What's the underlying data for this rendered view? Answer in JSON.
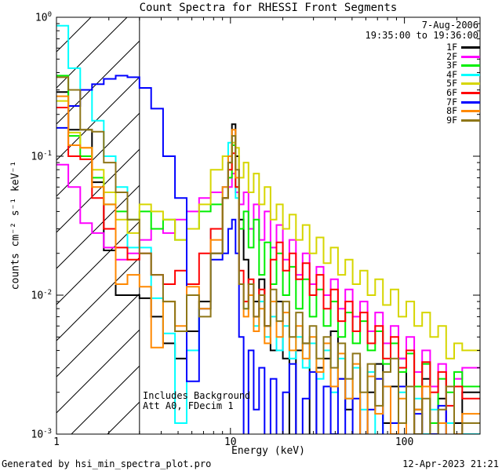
{
  "chart_data": {
    "type": "line",
    "subtype": "log-log step histogram spectra",
    "title": "Count Spectra for RHESSI Front Segments",
    "observation": {
      "date": "7-Aug-2006",
      "time_range": "19:35:00 to 19:36:00"
    },
    "annotations": [
      "Includes Background",
      "Att A0, FDecim 1"
    ],
    "footer": {
      "left": "Generated by hsi_min_spectra_plot.pro",
      "right": "12-Apr-2023 21:21"
    },
    "xlabel": "Energy (keV)",
    "ylabel": "counts cm⁻² s⁻¹ keV⁻¹",
    "xlim": [
      1,
      272
    ],
    "ylim": [
      0.001,
      1
    ],
    "xlog": true,
    "ylog": true,
    "grid": false,
    "legend_position": "top-right-inside",
    "hatched_region_kev": [
      1,
      3
    ],
    "x_tick_labels": [
      {
        "value": 1,
        "label": "1"
      },
      {
        "value": 10,
        "label": "10"
      },
      {
        "value": 100,
        "label": "100"
      }
    ],
    "y_tick_labels": [
      {
        "value": 1,
        "base": "10",
        "exp": "0"
      },
      {
        "value": 0.1,
        "base": "10",
        "exp": "-1"
      },
      {
        "value": 0.01,
        "base": "10",
        "exp": "-2"
      },
      {
        "value": 0.001,
        "base": "10",
        "exp": "-3"
      }
    ],
    "x_bin_edges": [
      1.0,
      1.17,
      1.37,
      1.6,
      1.87,
      2.19,
      2.56,
      3.0,
      3.5,
      4.1,
      4.8,
      5.6,
      6.6,
      7.7,
      9.0,
      9.7,
      10.2,
      10.7,
      11.2,
      11.9,
      12.7,
      13.6,
      14.6,
      15.7,
      17.0,
      18.4,
      20.0,
      21.8,
      23.8,
      26.0,
      28.5,
      31.2,
      34.3,
      37.7,
      41.5,
      45.7,
      50.4,
      55.6,
      61.4,
      67.9,
      75.2,
      83.3,
      92.4,
      102.5,
      113.8,
      126.4,
      140.5,
      156.2,
      173.7,
      193.2,
      215.0,
      272.0
    ],
    "series": [
      {
        "name": "1F",
        "color": "#000000",
        "values": [
          0.29,
          0.155,
          0.155,
          0.065,
          0.021,
          0.01,
          0.01,
          0.0095,
          0.007,
          0.0045,
          0.0035,
          0.0055,
          0.009,
          0.02,
          0.05,
          0.09,
          0.17,
          0.1,
          0.035,
          0.018,
          0.012,
          0.009,
          0.013,
          0.006,
          0.004,
          0.009,
          0.0035,
          0.0008,
          0.004,
          0.0045,
          0.0008,
          0.003,
          0.0035,
          0.0055,
          0.0025,
          0.0015,
          0.003,
          0.0008,
          0.002,
          0.0032,
          0.0012,
          0.0022,
          0.0035,
          0.0008,
          0.0015,
          0.0025,
          0.001,
          0.0018,
          0.0008,
          0.0012,
          0.002
        ]
      },
      {
        "name": "2F",
        "color": "#ff00ff",
        "values": [
          0.087,
          0.06,
          0.033,
          0.028,
          0.022,
          0.018,
          0.02,
          0.025,
          0.03,
          0.028,
          0.035,
          0.04,
          0.05,
          0.055,
          0.06,
          0.06,
          0.075,
          0.055,
          0.045,
          0.055,
          0.03,
          0.045,
          0.025,
          0.04,
          0.022,
          0.032,
          0.018,
          0.025,
          0.014,
          0.02,
          0.012,
          0.016,
          0.01,
          0.013,
          0.008,
          0.011,
          0.007,
          0.009,
          0.0055,
          0.0075,
          0.0045,
          0.006,
          0.0035,
          0.005,
          0.0028,
          0.004,
          0.0022,
          0.0032,
          0.0008,
          0.0025,
          0.003
        ]
      },
      {
        "name": "3F",
        "color": "#00ee00",
        "values": [
          0.38,
          0.14,
          0.1,
          0.07,
          0.045,
          0.04,
          0.035,
          0.04,
          0.03,
          0.035,
          0.025,
          0.03,
          0.04,
          0.045,
          0.05,
          0.07,
          0.12,
          0.06,
          0.03,
          0.04,
          0.022,
          0.035,
          0.014,
          0.024,
          0.012,
          0.02,
          0.01,
          0.016,
          0.008,
          0.013,
          0.007,
          0.011,
          0.006,
          0.009,
          0.005,
          0.0075,
          0.0045,
          0.0065,
          0.004,
          0.0055,
          0.0032,
          0.0045,
          0.0028,
          0.0038,
          0.0022,
          0.0032,
          0.0012,
          0.0025,
          0.002,
          0.0028,
          0.0022
        ]
      },
      {
        "name": "4F",
        "color": "#00ffff",
        "values": [
          0.87,
          0.43,
          0.3,
          0.18,
          0.1,
          0.06,
          0.022,
          0.022,
          0.0095,
          0.0053,
          0.0012,
          0.004,
          0.008,
          0.03,
          0.06,
          0.125,
          0.125,
          0.05,
          0.012,
          0.008,
          0.01,
          0.006,
          0.009,
          0.005,
          0.007,
          0.004,
          0.006,
          0.0035,
          0.005,
          0.003,
          0.0045,
          0.0025,
          0.004,
          0.002,
          0.0035,
          0.0018,
          0.003,
          0.0015,
          0.0028,
          0.0008,
          0.0022,
          0.0012,
          0.002,
          0.0008,
          0.0018,
          0.001,
          0.0015,
          0.0008,
          0.0012,
          0.0006,
          0.001
        ]
      },
      {
        "name": "5F",
        "color": "#d6d600",
        "values": [
          0.25,
          0.148,
          0.115,
          0.08,
          0.055,
          0.035,
          0.028,
          0.045,
          0.04,
          0.035,
          0.025,
          0.03,
          0.045,
          0.08,
          0.1,
          0.1,
          0.125,
          0.115,
          0.07,
          0.09,
          0.055,
          0.075,
          0.045,
          0.06,
          0.035,
          0.045,
          0.03,
          0.038,
          0.025,
          0.032,
          0.02,
          0.026,
          0.017,
          0.022,
          0.014,
          0.018,
          0.012,
          0.015,
          0.01,
          0.013,
          0.0085,
          0.011,
          0.007,
          0.009,
          0.006,
          0.0075,
          0.005,
          0.006,
          0.0035,
          0.0045,
          0.004
        ]
      },
      {
        "name": "6F",
        "color": "#ff0000",
        "values": [
          0.224,
          0.1,
          0.095,
          0.05,
          0.03,
          0.022,
          0.018,
          0.02,
          0.014,
          0.012,
          0.015,
          0.012,
          0.02,
          0.03,
          0.05,
          0.08,
          0.105,
          0.06,
          0.015,
          0.009,
          0.013,
          0.007,
          0.011,
          0.006,
          0.018,
          0.024,
          0.015,
          0.02,
          0.013,
          0.017,
          0.01,
          0.014,
          0.008,
          0.011,
          0.0065,
          0.009,
          0.0055,
          0.0075,
          0.0045,
          0.006,
          0.0035,
          0.005,
          0.003,
          0.004,
          0.0008,
          0.0033,
          0.002,
          0.0028,
          0.0016,
          0.0022,
          0.0018
        ]
      },
      {
        "name": "7F",
        "color": "#0000ff",
        "values": [
          0.16,
          0.23,
          0.3,
          0.33,
          0.36,
          0.38,
          0.37,
          0.31,
          0.22,
          0.1,
          0.05,
          0.0024,
          0.008,
          0.018,
          0.02,
          0.03,
          0.035,
          0.02,
          0.005,
          0.0008,
          0.004,
          0.0015,
          0.003,
          0.0008,
          0.0025,
          0.0008,
          0.002,
          0.0032,
          0.0008,
          0.0018,
          0.0028,
          0.0008,
          0.0022,
          0.001,
          0.0025,
          0.0008,
          0.0018,
          0.0008,
          0.0015,
          0.0025,
          0.0006,
          0.0012,
          0.0022,
          0.0008,
          0.0014,
          0.0006,
          0.001,
          0.0016,
          0.0005,
          0.0009,
          0.0012
        ]
      },
      {
        "name": "8F",
        "color": "#ff8800",
        "values": [
          0.27,
          0.12,
          0.115,
          0.06,
          0.045,
          0.012,
          0.014,
          0.0115,
          0.0042,
          0.009,
          0.006,
          0.0115,
          0.008,
          0.025,
          0.06,
          0.1,
          0.155,
          0.07,
          0.012,
          0.007,
          0.01,
          0.0055,
          0.008,
          0.0045,
          0.009,
          0.005,
          0.0075,
          0.004,
          0.006,
          0.0035,
          0.005,
          0.0028,
          0.0045,
          0.0022,
          0.0038,
          0.0018,
          0.0032,
          0.0008,
          0.0026,
          0.0014,
          0.0022,
          0.001,
          0.0018,
          0.0008,
          0.0015,
          0.0022,
          0.0007,
          0.0012,
          0.0005,
          0.001,
          0.0014
        ]
      },
      {
        "name": "9F",
        "color": "#8e7618",
        "values": [
          0.37,
          0.3,
          0.155,
          0.15,
          0.09,
          0.055,
          0.035,
          0.02,
          0.014,
          0.009,
          0.0055,
          0.01,
          0.007,
          0.02,
          0.05,
          0.09,
          0.14,
          0.08,
          0.012,
          0.008,
          0.012,
          0.007,
          0.01,
          0.006,
          0.011,
          0.0065,
          0.009,
          0.005,
          0.0075,
          0.0045,
          0.006,
          0.0035,
          0.005,
          0.003,
          0.0045,
          0.0025,
          0.0038,
          0.002,
          0.0032,
          0.0016,
          0.0028,
          0.0035,
          0.0012,
          0.0022,
          0.001,
          0.0018,
          0.0008,
          0.0015,
          0.0022,
          0.0008,
          0.0012
        ]
      }
    ]
  }
}
